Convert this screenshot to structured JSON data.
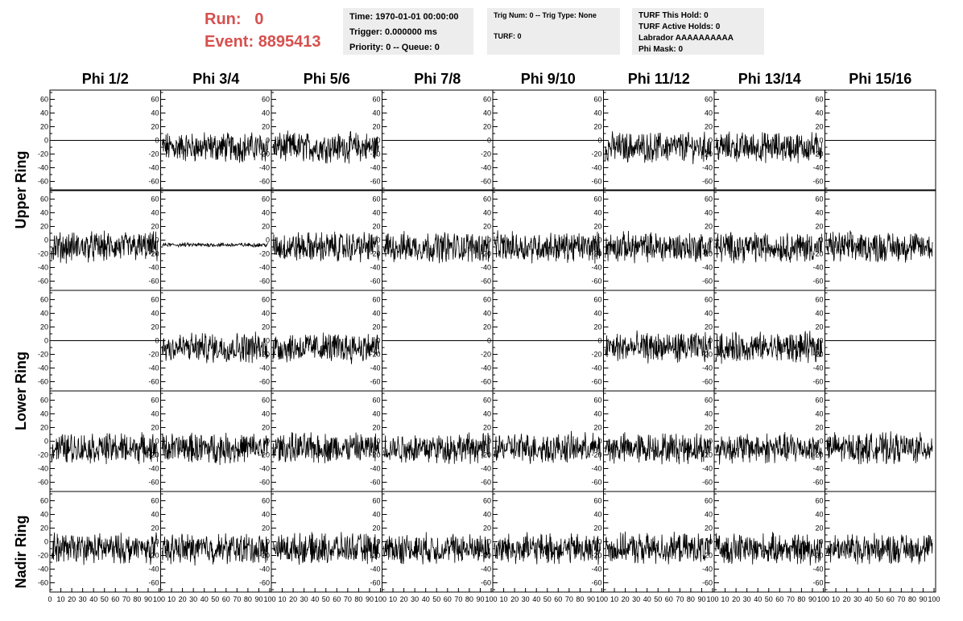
{
  "run_label": "Run:",
  "run_value": "0",
  "event_label": "Event:",
  "event_value": "8895413",
  "info_time": "Time: 1970-01-01 00:00:00",
  "info_trigger": "Trigger: 0.000000 ms",
  "info_priority": "Priority: 0 -- Queue: 0",
  "trig_num": "Trig Num: 0 -- Trig Type: None",
  "turf": "TURF: 0",
  "turf_this_hold": "TURF This Hold: 0",
  "turf_active_holds": "TURF Active Holds: 0",
  "labrador": "Labrador AAAAAAAAAA",
  "phi_mask": "Phi Mask: 0",
  "columns": [
    "Phi 1/2",
    "Phi 3/4",
    "Phi 5/6",
    "Phi 7/8",
    "Phi 9/10",
    "Phi 11/12",
    "Phi 13/14",
    "Phi 15/16"
  ],
  "rings": [
    "Upper Ring",
    "Lower Ring",
    "Nadir Ring"
  ],
  "y_ticks": [
    "60",
    "40",
    "20",
    "0",
    "-20",
    "-40",
    "-60"
  ],
  "x_ticks": [
    "0",
    "10",
    "20",
    "30",
    "40",
    "50",
    "60",
    "70",
    "80",
    "90",
    "100"
  ],
  "panel_rows": [
    [
      "flat",
      "noise",
      "noise",
      "flat",
      "flat",
      "noise",
      "noise",
      "flat"
    ],
    [
      "noise",
      "quiet",
      "noise",
      "noise",
      "noise",
      "noise",
      "noise",
      "noise"
    ],
    [
      "flat",
      "noise",
      "noise",
      "flat",
      "flat",
      "noise",
      "noise",
      "flat"
    ],
    [
      "noise",
      "noise",
      "noise",
      "noise",
      "noise",
      "noise",
      "noise",
      "noise"
    ],
    [
      "noise",
      "noise",
      "noise",
      "noise",
      "noise",
      "noise",
      "noise",
      "noise"
    ]
  ],
  "colors": {
    "header_text": "#d6504e",
    "info_bg": "#ededed"
  }
}
